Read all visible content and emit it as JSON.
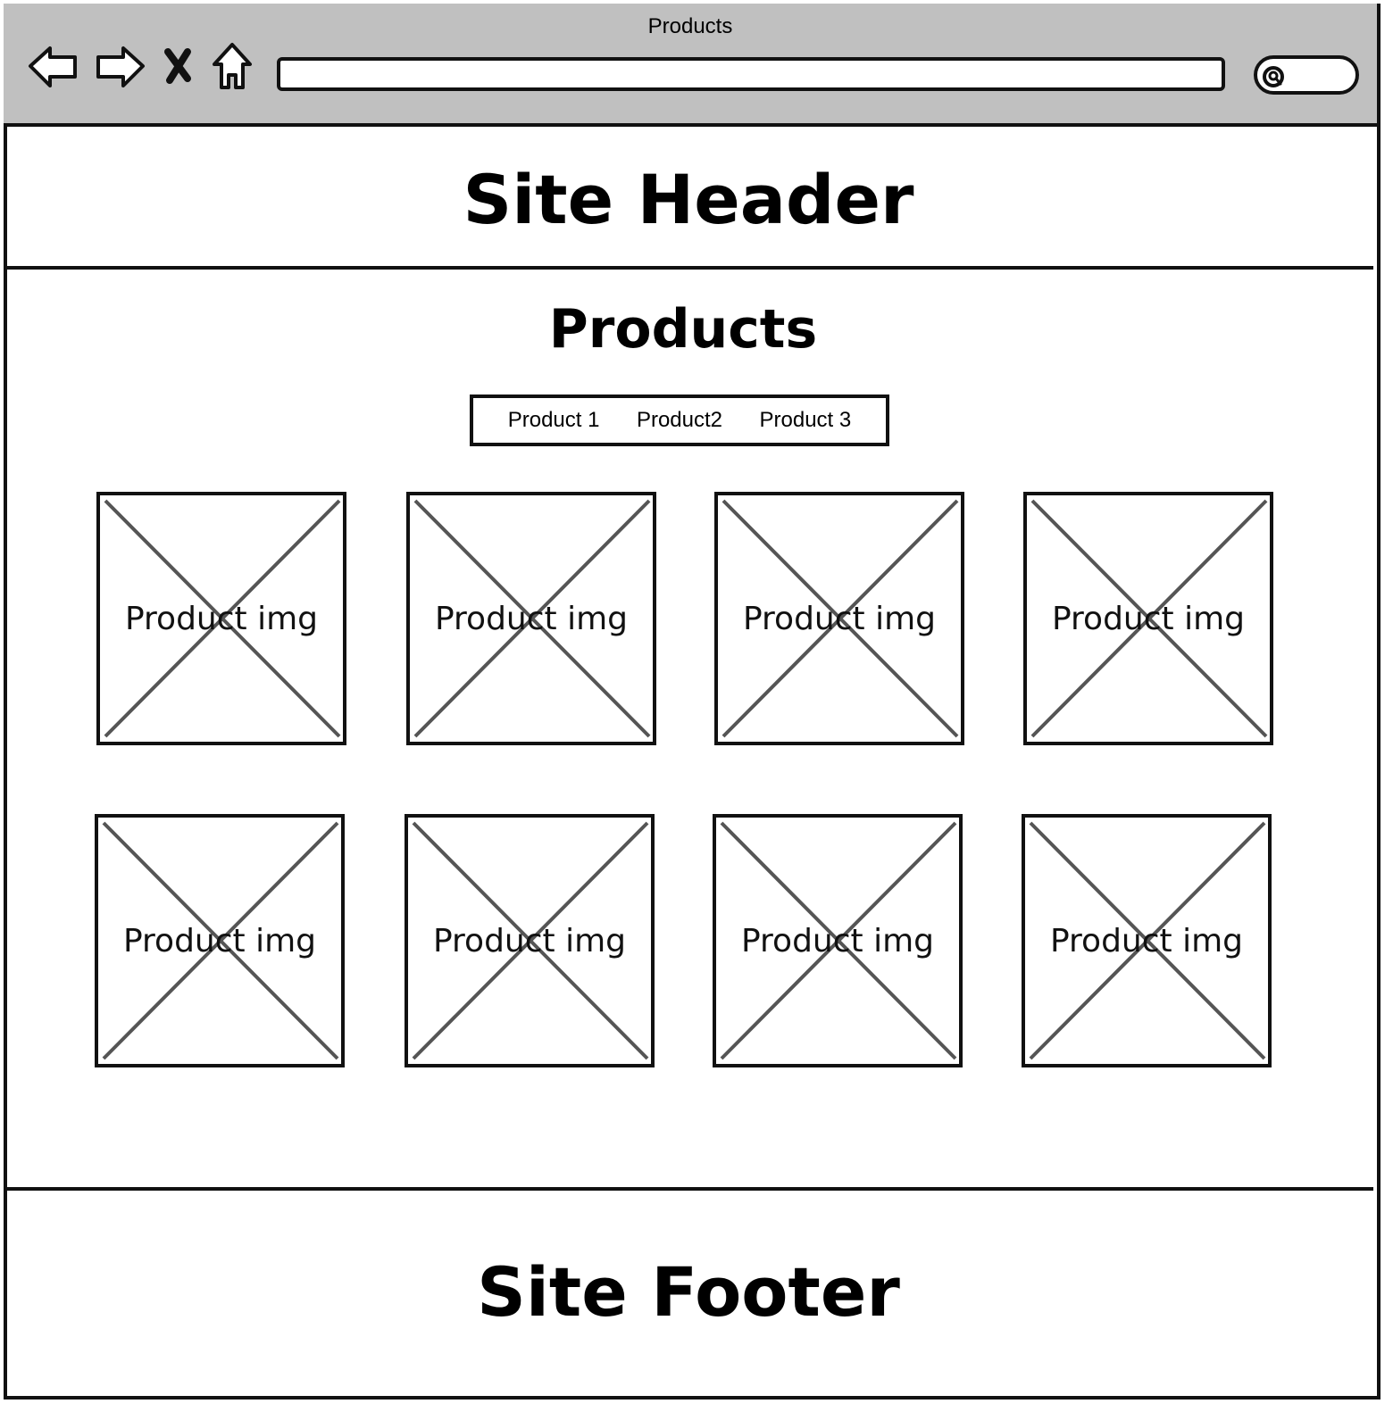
{
  "browser": {
    "window_title": "Products",
    "icons": {
      "back": "back-arrow-icon",
      "forward": "forward-arrow-icon",
      "stop": "close-icon",
      "home": "home-icon",
      "search": "search-icon"
    }
  },
  "header": {
    "title": "Site Header"
  },
  "main": {
    "heading": "Products",
    "product_nav": [
      "Product 1",
      "Product2",
      "Product 3"
    ],
    "products": [
      {
        "label": "Product img"
      },
      {
        "label": "Product img"
      },
      {
        "label": "Product img"
      },
      {
        "label": "Product img"
      },
      {
        "label": "Product img"
      },
      {
        "label": "Product img"
      },
      {
        "label": "Product img"
      },
      {
        "label": "Product img"
      }
    ]
  },
  "footer": {
    "title": "Site Footer"
  }
}
